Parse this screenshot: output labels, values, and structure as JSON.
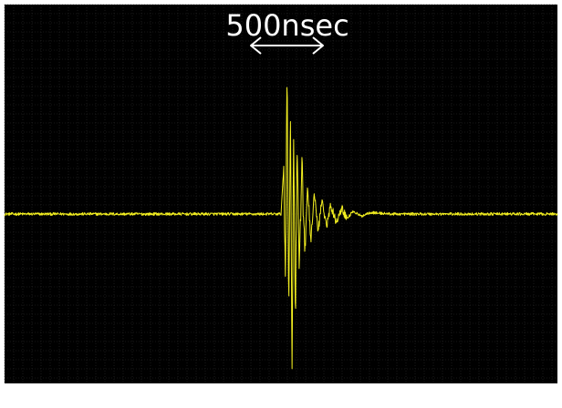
{
  "chart_data": {
    "type": "line",
    "title": "",
    "xlabel": "",
    "ylabel": "",
    "grid": true,
    "background_color": "#000000",
    "grid_color": "#2c2c2c",
    "trace_color": "#f2ee20",
    "annotation": {
      "text": "500nsec",
      "arrow": "double-headed",
      "color": "#ffffff"
    },
    "series": [
      {
        "values": [
          [
            0.0,
            0.0
          ],
          [
            0.25,
            0.0
          ],
          [
            0.5,
            0.0
          ],
          [
            0.505,
            0.3
          ],
          [
            0.508,
            -0.45
          ],
          [
            0.511,
            0.95
          ],
          [
            0.514,
            -0.6
          ],
          [
            0.517,
            0.65
          ],
          [
            0.52,
            -1.0
          ],
          [
            0.523,
            0.55
          ],
          [
            0.526,
            -0.75
          ],
          [
            0.529,
            0.45
          ],
          [
            0.533,
            -0.4
          ],
          [
            0.538,
            0.3
          ],
          [
            0.543,
            -0.28
          ],
          [
            0.548,
            0.2
          ],
          [
            0.554,
            -0.18
          ],
          [
            0.56,
            0.14
          ],
          [
            0.567,
            -0.12
          ],
          [
            0.574,
            0.1
          ],
          [
            0.582,
            -0.08
          ],
          [
            0.59,
            0.06
          ],
          [
            0.6,
            -0.05
          ],
          [
            0.61,
            0.04
          ],
          [
            0.62,
            -0.03
          ],
          [
            0.63,
            0.02
          ],
          [
            0.645,
            -0.015
          ],
          [
            0.66,
            0.01
          ],
          [
            0.7,
            0.0
          ],
          [
            1.0,
            0.0
          ]
        ]
      }
    ]
  }
}
